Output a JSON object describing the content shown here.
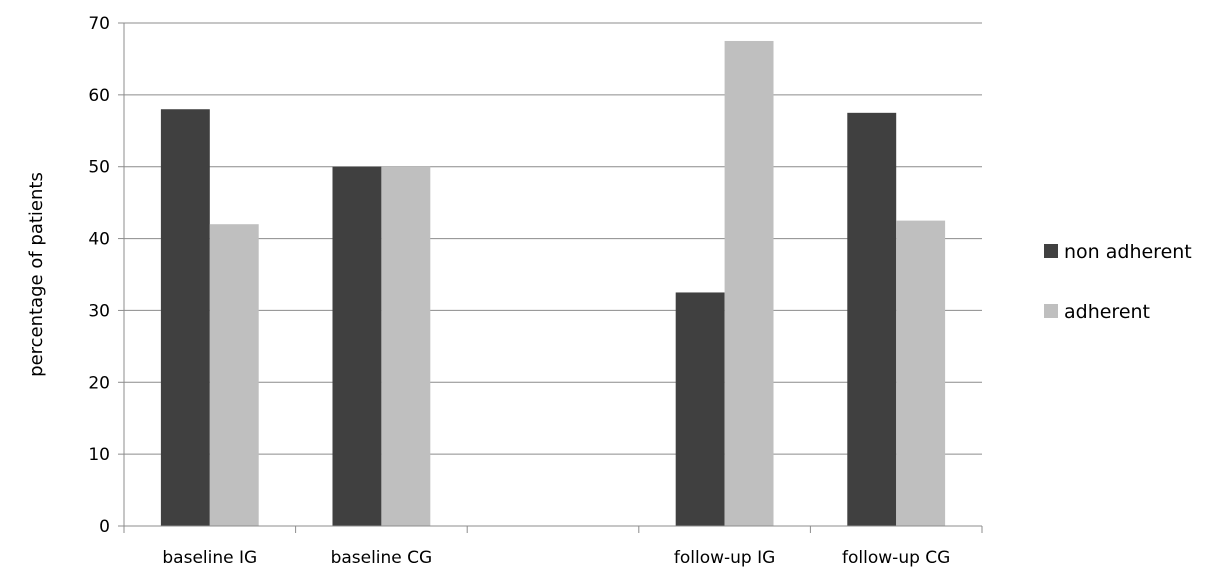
{
  "chart_data": {
    "type": "bar",
    "title": "",
    "xlabel": "",
    "ylabel": "percentage of patients",
    "ylim": [
      0,
      70
    ],
    "yticks": [
      0,
      10,
      20,
      30,
      40,
      50,
      60,
      70
    ],
    "grid": true,
    "legend_position": "right",
    "categories": [
      "baseline IG",
      "baseline  CG",
      "",
      "follow-up IG",
      "follow-up CG"
    ],
    "series": [
      {
        "name": "non adherent",
        "color": "#404040",
        "values": [
          58,
          50,
          null,
          32.5,
          57.5
        ]
      },
      {
        "name": "adherent",
        "color": "#bfbfbf",
        "values": [
          42,
          50,
          null,
          67.5,
          42.5
        ]
      }
    ]
  }
}
